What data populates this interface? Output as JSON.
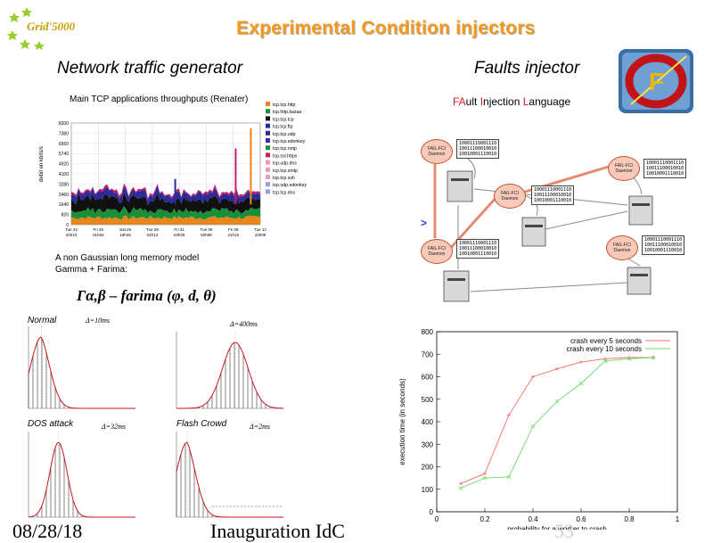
{
  "header": {
    "logo_text": "Grid'5000",
    "title": "Experimental Condition injectors"
  },
  "left": {
    "section_title": "Network traffic generator",
    "traffic_chart": {
      "title": "Main TCP applications throughputs (Renater)",
      "ylabel": "debit en kbits/s",
      "yticks": [
        "8200",
        "7380",
        "6560",
        "5740",
        "4920",
        "4100",
        "3280",
        "2460",
        "1640",
        "820",
        "0"
      ],
      "xticks": [
        "Tue 22\n20h10",
        "Fri 25\n01h53",
        "Sat 26\n18h46",
        "Tue 29\n04h13",
        "Fri 31\n03h28",
        "Tue 05\n02h58",
        "Fri 08\n21h18",
        "Tue 12\n22h09"
      ],
      "legend": [
        "tcp.tcp.http",
        "tcp.http.kazaa",
        "tcp.tcp.tcp",
        "tcp.tcp.ftp",
        "tcp.tcp.udp",
        "tcp.tcp.edonkey",
        "tcp.tcp.nntp",
        "tcp.ssl.https",
        "tcp.udp.dns",
        "tcp.tcp.smtp",
        "tcp.tcp.ssh",
        "tcp.udp.edonkey",
        "tcp.tcp.dns"
      ]
    },
    "model_text_1": "A non Gaussian long memory model",
    "model_text_2": "Gamma + Farima:",
    "formula": "Γα,β – farima (φ, d, θ)",
    "panels": [
      {
        "label": "Normal",
        "delta": "Δ=10ms"
      },
      {
        "label": "",
        "delta": "Δ=400ms"
      },
      {
        "label": "DOS attack",
        "delta": "Δ=32ms"
      },
      {
        "label": "Flash Crowd",
        "delta": "Δ=2ms"
      }
    ]
  },
  "right": {
    "section_title": "Faults injector",
    "subtitle_parts": [
      "FA",
      "ult ",
      "I",
      "njection ",
      "L",
      "anguage"
    ],
    "diagram": {
      "nodes": [
        "FAIL-FCI Daemon",
        "FAIL-FCI Daemon",
        "FAIL-FCI Daemon",
        "FAIL-FCI Daemon",
        "FAIL-FCI Daemon"
      ],
      "code": "10001110001110\n10011100010010\n10010001110010"
    }
  },
  "chart_data": {
    "type": "line",
    "xlabel": "probability for a worker to crash",
    "ylabel": "execution time (in seconds)",
    "xlim": [
      0,
      1
    ],
    "ylim": [
      0,
      800
    ],
    "xticks": [
      "0",
      "0.2",
      "0.4",
      "0.6",
      "0.8",
      "1"
    ],
    "yticks": [
      "0",
      "100",
      "200",
      "300",
      "400",
      "500",
      "600",
      "700",
      "800"
    ],
    "legend_position": "top-right",
    "grid": false,
    "series": [
      {
        "name": "crash every 5 seconds",
        "color": "#ff6b6b",
        "x": [
          0.1,
          0.2,
          0.3,
          0.4,
          0.5,
          0.6,
          0.7,
          0.8,
          0.9
        ],
        "y": [
          125,
          170,
          430,
          600,
          635,
          665,
          680,
          685,
          685
        ]
      },
      {
        "name": "crash every 10 seconds",
        "color": "#66dd66",
        "x": [
          0.1,
          0.2,
          0.3,
          0.4,
          0.5,
          0.6,
          0.7,
          0.8,
          0.9
        ],
        "y": [
          105,
          150,
          155,
          380,
          490,
          570,
          670,
          680,
          685
        ]
      }
    ]
  },
  "footer": {
    "date": "08/28/18",
    "event": "Inauguration IdC",
    "page": "53"
  }
}
